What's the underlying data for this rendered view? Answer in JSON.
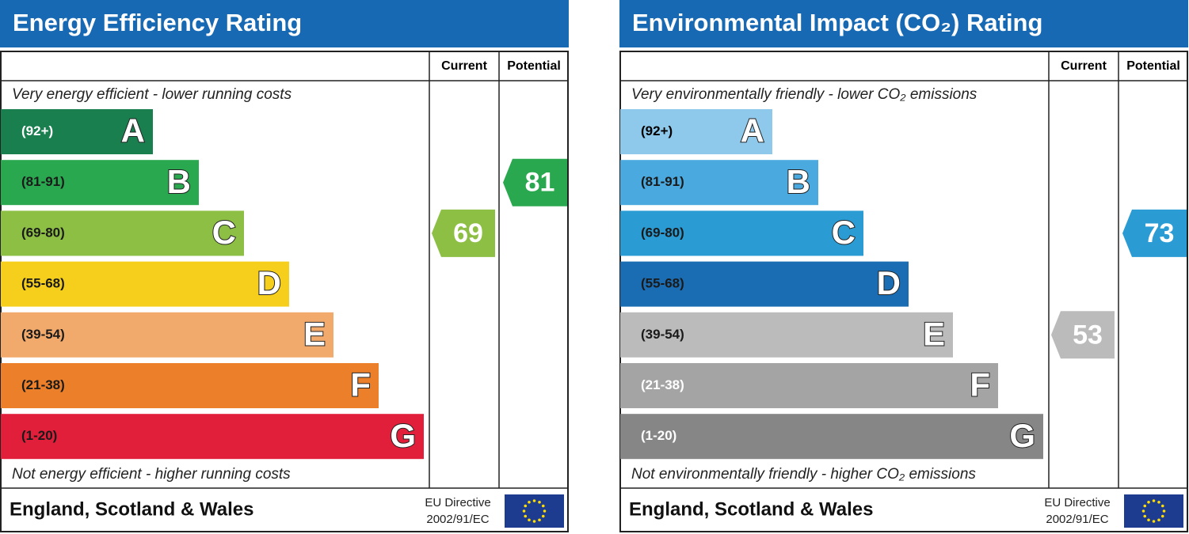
{
  "panels": [
    {
      "title": "Energy Efficiency Rating",
      "header_current": "Current",
      "header_potential": "Potential",
      "top_text": "Very energy efficient - lower running costs",
      "bottom_text": "Not energy efficient - higher running costs",
      "bands": [
        {
          "range": "(92+)",
          "letter": "A",
          "color": "#1a7f4f",
          "text_color": "#ffffff"
        },
        {
          "range": "(81-91)",
          "letter": "B",
          "color": "#2aa84f",
          "text_color": "#1a1a1a"
        },
        {
          "range": "(69-80)",
          "letter": "C",
          "color": "#8cbf44",
          "text_color": "#1a1a1a"
        },
        {
          "range": "(55-68)",
          "letter": "D",
          "color": "#f5cf1b",
          "text_color": "#1a1a1a"
        },
        {
          "range": "(39-54)",
          "letter": "E",
          "color": "#f2a96c",
          "text_color": "#1a1a1a"
        },
        {
          "range": "(21-38)",
          "letter": "F",
          "color": "#ec7f29",
          "text_color": "#1a1a1a"
        },
        {
          "range": "(1-20)",
          "letter": "G",
          "color": "#e21f3b",
          "text_color": "#1a1a1a"
        }
      ],
      "current": {
        "value": 69
      },
      "potential": {
        "value": 81
      },
      "footer": "England, Scotland & Wales",
      "directive": [
        "EU Directive",
        "2002/91/EC"
      ]
    },
    {
      "title": "Environmental Impact (CO₂) Rating",
      "header_current": "Current",
      "header_potential": "Potential",
      "top_text": "Very environmentally friendly - lower CO₂ emissions",
      "bottom_text": "Not environmentally friendly - higher CO₂ emissions",
      "bands": [
        {
          "range": "(92+)",
          "letter": "A",
          "color": "#8ec8ea",
          "text_color": "#000000"
        },
        {
          "range": "(81-91)",
          "letter": "B",
          "color": "#4aaadf",
          "text_color": "#1a1a1a"
        },
        {
          "range": "(69-80)",
          "letter": "C",
          "color": "#2b9bd4",
          "text_color": "#1a1a1a"
        },
        {
          "range": "(55-68)",
          "letter": "D",
          "color": "#1b6db3",
          "text_color": "#1a1a1a"
        },
        {
          "range": "(39-54)",
          "letter": "E",
          "color": "#bbbbbb",
          "text_color": "#1a1a1a"
        },
        {
          "range": "(21-38)",
          "letter": "F",
          "color": "#a4a4a4",
          "text_color": "#ffffff"
        },
        {
          "range": "(1-20)",
          "letter": "G",
          "color": "#868686",
          "text_color": "#ffffff"
        }
      ],
      "current": {
        "value": 53
      },
      "potential": {
        "value": 73
      },
      "footer": "England, Scotland & Wales",
      "directive": [
        "EU Directive",
        "2002/91/EC"
      ]
    }
  ]
}
